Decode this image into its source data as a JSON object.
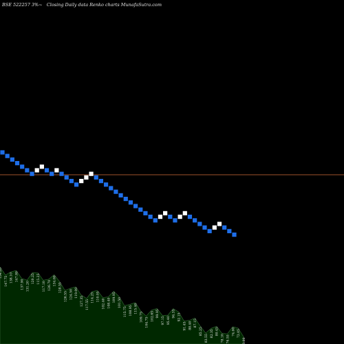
{
  "header": {
    "symbol": "BSE 522257 3%~",
    "description": "Closing Daily data  Renko  charts MunafaSutra.com"
  },
  "colors": {
    "background": "#000000",
    "up_brick": "#ffffff",
    "down_brick": "#1e6ee8",
    "reference_line": "#a0522d",
    "volume_fill": "#002800",
    "volume_line": "#3a6a3a",
    "label": "#e8e8e8"
  },
  "chart_data": {
    "type": "renko",
    "brick_direction": [
      "down",
      "down",
      "down",
      "down",
      "down",
      "down",
      "down",
      "up",
      "up",
      "down",
      "down",
      "up",
      "down",
      "down",
      "down",
      "down",
      "up",
      "up",
      "up",
      "down",
      "down",
      "down",
      "down",
      "down",
      "down",
      "down",
      "down",
      "down",
      "down",
      "down",
      "down",
      "down",
      "up",
      "up",
      "down",
      "down",
      "up",
      "up",
      "down",
      "down",
      "down",
      "down",
      "down",
      "up",
      "up",
      "down",
      "down",
      "down"
    ],
    "y_steps": [
      0,
      -1,
      -2,
      -3,
      -4,
      -5,
      -6,
      -5,
      -4,
      -5,
      -6,
      -5,
      -6,
      -7,
      -8,
      -9,
      -8,
      -7,
      -6,
      -7,
      -8,
      -9,
      -10,
      -11,
      -12,
      -13,
      -14,
      -15,
      -16,
      -17,
      -18,
      -19,
      -18,
      -17,
      -18,
      -19,
      -18,
      -17,
      -18,
      -19,
      -20,
      -21,
      -22,
      -21,
      -20,
      -21,
      -22,
      -23
    ],
    "volume_labels": [
      "154.20",
      "147.75",
      "138.10",
      "147.80",
      "137.90",
      "131.20",
      "120.25",
      "115.25",
      "117.10",
      "126.70",
      "134.60",
      "128.55",
      "126.55",
      "124.50",
      "119.00",
      "127.35",
      "117.55",
      "114.25",
      "110.05",
      "102.40",
      "108.40",
      "109.95",
      "101.50",
      "115.75",
      "108.95",
      "115.40",
      "109.75",
      "104.75",
      "102.65",
      "99.95",
      "97.15",
      "95.40",
      "94.35",
      "92.15",
      "91.45",
      "88.40",
      "87.15",
      "85.25",
      "83.55",
      "82.35",
      "80.45",
      "78.10",
      "76.55",
      "74.00",
      "72.05",
      "70.00"
    ]
  }
}
